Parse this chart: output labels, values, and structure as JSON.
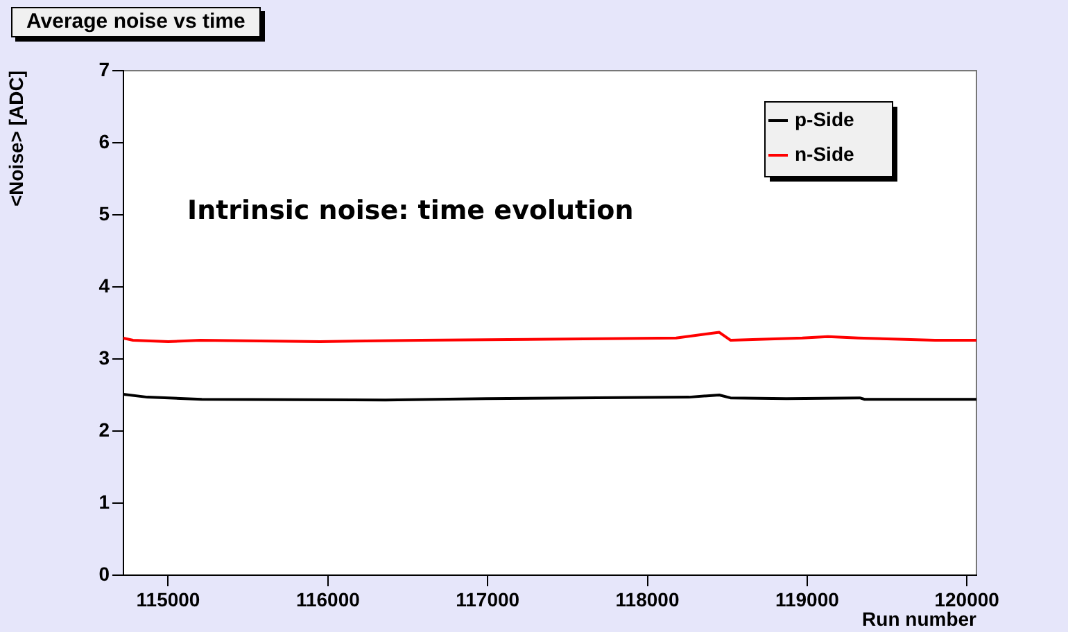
{
  "chart_data": {
    "type": "line",
    "title": "Average noise vs time",
    "xlabel": "Run number",
    "ylabel": "<Noise> [ADC]",
    "annotations": [
      "Intrinsic noise: time evolution"
    ],
    "xlim": [
      114720,
      120060
    ],
    "xticks": [
      115000,
      116000,
      117000,
      118000,
      119000,
      120000
    ],
    "ylim": [
      0,
      7
    ],
    "yticks": [
      0,
      1,
      2,
      3,
      4,
      5,
      6,
      7
    ],
    "grid": false,
    "legend": "top right",
    "marker": "none",
    "line_style": "solid",
    "series": [
      {
        "name": "p-Side",
        "color": "#000000",
        "x": [
          114720,
          114870,
          115210,
          116360,
          116990,
          118260,
          118450,
          118520,
          118870,
          119330,
          119360,
          120060
        ],
        "values": [
          2.51,
          2.47,
          2.44,
          2.43,
          2.45,
          2.47,
          2.5,
          2.46,
          2.45,
          2.46,
          2.44,
          2.44
        ]
      },
      {
        "name": "n-Side",
        "color": "#ff0000",
        "x": [
          114720,
          114780,
          115000,
          115200,
          115950,
          116580,
          118180,
          118450,
          118520,
          118970,
          119130,
          119320,
          119800,
          120060
        ],
        "values": [
          3.29,
          3.26,
          3.24,
          3.26,
          3.24,
          3.26,
          3.29,
          3.37,
          3.26,
          3.29,
          3.31,
          3.29,
          3.26,
          3.26
        ]
      }
    ]
  }
}
